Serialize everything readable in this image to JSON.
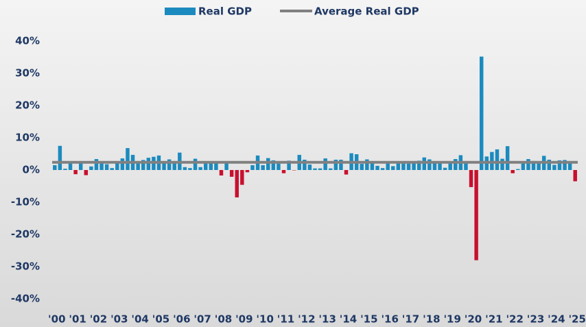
{
  "chart_data": {
    "type": "bar",
    "categories": [
      "'00",
      null,
      null,
      null,
      "'01",
      null,
      null,
      null,
      "'02",
      null,
      null,
      null,
      "'03",
      null,
      null,
      null,
      "'04",
      null,
      null,
      null,
      "'05",
      null,
      null,
      null,
      "'06",
      null,
      null,
      null,
      "'07",
      null,
      null,
      null,
      "'08",
      null,
      null,
      null,
      "'09",
      null,
      null,
      null,
      "'10",
      null,
      null,
      null,
      "'11",
      null,
      null,
      null,
      "'12",
      null,
      null,
      null,
      "'13",
      null,
      null,
      null,
      "'14",
      null,
      null,
      null,
      "'15",
      null,
      null,
      null,
      "'16",
      null,
      null,
      null,
      "'17",
      null,
      null,
      null,
      "'18",
      null,
      null,
      null,
      "'19",
      null,
      null,
      null,
      "'20",
      null,
      null,
      null,
      "'21",
      null,
      null,
      null,
      "'22",
      null,
      null,
      null,
      "'23",
      null,
      null,
      null,
      "'24",
      null,
      null,
      null,
      "'25"
    ],
    "series": [
      {
        "name": "Real GDP",
        "color": "#1b8bbf",
        "negative_color": "#c8102e",
        "values": [
          1.5,
          7.5,
          0.4,
          2.4,
          -1.3,
          2.5,
          -1.6,
          1.1,
          3.4,
          2.4,
          1.8,
          0.6,
          2.1,
          3.6,
          6.8,
          4.7,
          2.2,
          3.1,
          3.8,
          4.1,
          4.5,
          2.1,
          3.3,
          2.3,
          5.4,
          0.9,
          0.6,
          3.5,
          0.9,
          2.3,
          2.2,
          2.5,
          -1.7,
          2.1,
          -2.1,
          -8.5,
          -4.6,
          -0.7,
          1.5,
          4.5,
          1.5,
          3.7,
          3.0,
          2.0,
          -1.0,
          2.9,
          -0.1,
          4.7,
          3.2,
          1.7,
          0.5,
          0.5,
          3.6,
          0.5,
          3.2,
          3.2,
          -1.4,
          5.2,
          4.9,
          1.9,
          3.3,
          2.3,
          1.3,
          0.6,
          2.4,
          1.2,
          2.4,
          2.0,
          2.0,
          2.3,
          2.9,
          3.9,
          3.3,
          2.1,
          2.5,
          0.7,
          2.2,
          3.4,
          4.6,
          2.6,
          -5.3,
          -28.0,
          35.2,
          4.2,
          5.6,
          6.4,
          3.5,
          7.4,
          -1.0,
          0.3,
          2.7,
          3.4,
          2.8,
          2.4,
          4.4,
          3.2,
          1.6,
          3.0,
          3.1,
          2.4,
          -3.5
        ]
      },
      {
        "name": "Average Real GDP",
        "color": "#808080",
        "value": 2.4
      }
    ],
    "ylim": [
      -40,
      40
    ],
    "yticks": [
      {
        "value": 40,
        "label": "40%"
      },
      {
        "value": 30,
        "label": "30%"
      },
      {
        "value": 20,
        "label": "20%"
      },
      {
        "value": 10,
        "label": "10%"
      },
      {
        "value": 0,
        "label": "0%"
      },
      {
        "value": -10,
        "label": "-10%"
      },
      {
        "value": -20,
        "label": "-20%"
      },
      {
        "value": -30,
        "label": "-30%"
      },
      {
        "value": -40,
        "label": "-40%"
      }
    ],
    "grid": false,
    "legend": "top"
  }
}
